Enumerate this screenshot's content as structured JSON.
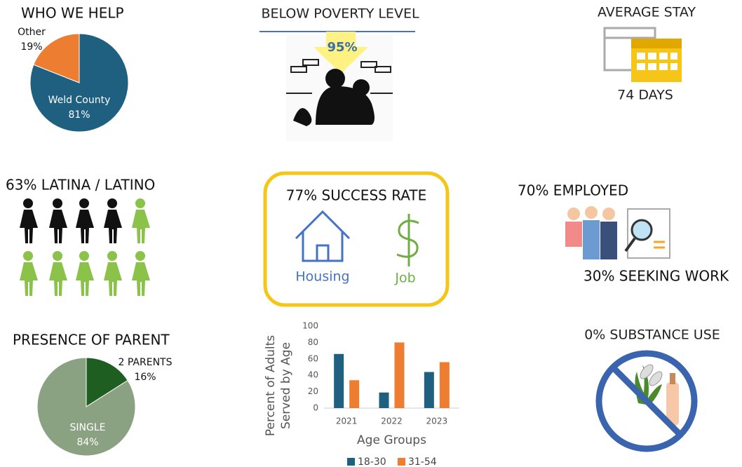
{
  "chart_data": [
    {
      "type": "pie",
      "title": "WHO WE HELP",
      "categories": [
        "Weld County",
        "Other"
      ],
      "values": [
        81,
        19
      ],
      "value_labels": [
        "81%",
        "19%"
      ],
      "colors": [
        "#1f5f80",
        "#ed7d31"
      ]
    },
    {
      "type": "pie",
      "title": "PRESENCE OF PARENT",
      "categories": [
        "2 PARENTS",
        "SINGLE"
      ],
      "values": [
        16,
        84
      ],
      "value_labels": [
        "16%",
        "84%"
      ],
      "colors": [
        "#1e5e20",
        "#8aa282"
      ]
    },
    {
      "type": "bar",
      "ylabel": [
        "Percent of Adults",
        "Served by Age"
      ],
      "xlabel": "Age Groups",
      "categories": [
        "2021",
        "2022",
        "2023"
      ],
      "series": [
        {
          "name": "18-30",
          "color": "#1f5f80",
          "values": [
            66,
            19,
            44
          ]
        },
        {
          "name": "31-54",
          "color": "#ed7d31",
          "values": [
            34,
            80,
            56
          ]
        }
      ],
      "ylim": [
        0,
        100
      ],
      "yticks": [
        0,
        20,
        40,
        60,
        80,
        100
      ],
      "grid": false,
      "legend": "bottom"
    }
  ],
  "poverty": {
    "title": "BELOW POVERTY LEVEL",
    "value": "95%"
  },
  "stay": {
    "title": "AVERAGE STAY",
    "value": "74 DAYS"
  },
  "latino": {
    "title": "63% LATINA / LATINO"
  },
  "success": {
    "title": "77% SUCCESS RATE",
    "housing": "Housing",
    "job": "Job"
  },
  "employment": {
    "employed": "70% EMPLOYED",
    "seeking": "30% SEEKING WORK"
  },
  "substance": {
    "title": "0% SUBSTANCE USE"
  }
}
